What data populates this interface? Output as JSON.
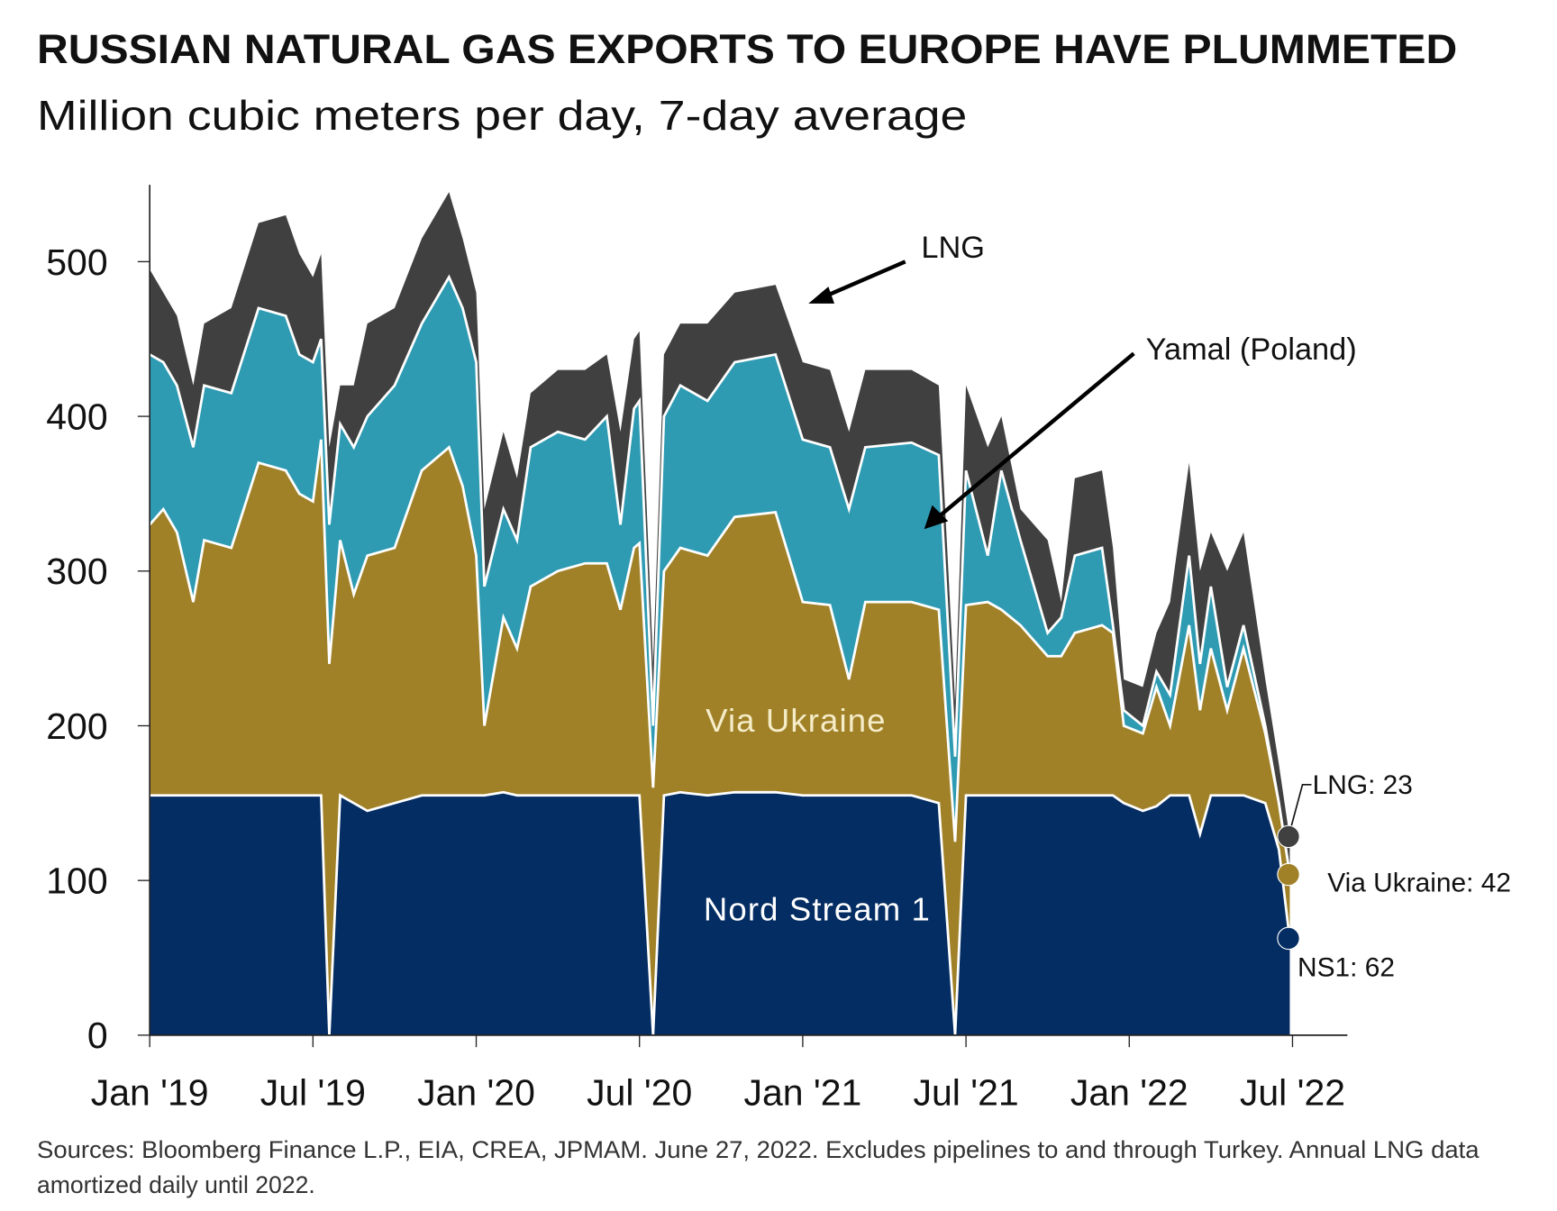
{
  "chart_data": {
    "type": "area",
    "stacked": true,
    "title": "RUSSIAN NATURAL GAS EXPORTS TO EUROPE HAVE PLUMMETED",
    "subtitle": "Million cubic meters per day, 7-day average",
    "xlabel": "",
    "ylabel": "",
    "x_unit": "months since Jan 2019",
    "x_ticks": [
      {
        "x": 0,
        "label": "Jan '19"
      },
      {
        "x": 6,
        "label": "Jul '19"
      },
      {
        "x": 12,
        "label": "Jan '20"
      },
      {
        "x": 18,
        "label": "Jul '20"
      },
      {
        "x": 24,
        "label": "Jan '21"
      },
      {
        "x": 30,
        "label": "Jul '21"
      },
      {
        "x": 36,
        "label": "Jan '22"
      },
      {
        "x": 42,
        "label": "Jul '22"
      }
    ],
    "y_ticks": [
      0,
      100,
      200,
      300,
      400,
      500
    ],
    "ylim": [
      0,
      550
    ],
    "xlim": [
      0,
      44
    ],
    "grid": false,
    "x": [
      0,
      0.5,
      1,
      1.6,
      2,
      3,
      4,
      5,
      5.5,
      6,
      6.3,
      6.6,
      7,
      7.5,
      8,
      9,
      10,
      11,
      11.5,
      12,
      12.3,
      13,
      13.5,
      14,
      15,
      16,
      16.8,
      17.3,
      17.8,
      18,
      18.5,
      18.9,
      19.5,
      20.5,
      21.5,
      23,
      24,
      25,
      25.7,
      26.3,
      28,
      29,
      29.6,
      30,
      30.8,
      31.3,
      32,
      33,
      33.5,
      34,
      35,
      35.4,
      35.8,
      36.5,
      37,
      37.5,
      38.2,
      38.6,
      39,
      39.6,
      40.2,
      41,
      41.5,
      41.9
    ],
    "series": [
      {
        "name": "Nord Stream 1",
        "color": "#042d63",
        "values": [
          155,
          155,
          155,
          155,
          155,
          155,
          155,
          155,
          155,
          155,
          155,
          0,
          155,
          150,
          145,
          150,
          155,
          155,
          155,
          155,
          155,
          157,
          155,
          155,
          155,
          155,
          155,
          155,
          155,
          155,
          0,
          155,
          157,
          155,
          157,
          157,
          155,
          155,
          155,
          155,
          155,
          150,
          0,
          155,
          155,
          155,
          155,
          155,
          155,
          155,
          155,
          155,
          150,
          145,
          148,
          155,
          155,
          130,
          155,
          155,
          155,
          150,
          120,
          62
        ]
      },
      {
        "name": "Via Ukraine",
        "color": "#a08128",
        "values": [
          175,
          185,
          170,
          125,
          165,
          160,
          215,
          210,
          195,
          190,
          230,
          240,
          165,
          135,
          165,
          165,
          210,
          225,
          200,
          155,
          45,
          113,
          95,
          135,
          145,
          150,
          150,
          120,
          160,
          163,
          160,
          145,
          158,
          155,
          178,
          181,
          125,
          123,
          75,
          125,
          125,
          125,
          125,
          123,
          125,
          120,
          110,
          90,
          90,
          105,
          110,
          105,
          50,
          50,
          77,
          45,
          110,
          80,
          95,
          55,
          95,
          45,
          30,
          42
        ]
      },
      {
        "name": "Yamal (Poland)",
        "color": "#2e9bb3",
        "values": [
          110,
          95,
          95,
          100,
          100,
          100,
          100,
          100,
          90,
          90,
          65,
          90,
          75,
          95,
          90,
          105,
          95,
          110,
          115,
          125,
          90,
          70,
          70,
          90,
          90,
          80,
          95,
          55,
          90,
          92,
          40,
          100,
          105,
          100,
          100,
          102,
          105,
          102,
          110,
          100,
          103,
          100,
          55,
          87,
          30,
          90,
          55,
          15,
          25,
          50,
          50,
          5,
          10,
          5,
          10,
          20,
          45,
          30,
          40,
          15,
          15,
          5,
          0,
          0
        ]
      },
      {
        "name": "LNG",
        "color": "#404040",
        "values": [
          55,
          45,
          45,
          40,
          40,
          55,
          55,
          65,
          65,
          55,
          55,
          50,
          25,
          40,
          60,
          50,
          55,
          55,
          45,
          45,
          50,
          50,
          40,
          35,
          40,
          45,
          40,
          60,
          45,
          45,
          40,
          40,
          40,
          50,
          45,
          45,
          50,
          50,
          50,
          50,
          47,
          45,
          35,
          55,
          70,
          35,
          20,
          60,
          10,
          50,
          50,
          50,
          20,
          25,
          25,
          60,
          60,
          60,
          35,
          75,
          60,
          30,
          25,
          23
        ]
      }
    ],
    "annotations": {
      "lng_label": "LNG",
      "yamal_label": "Yamal (Poland)",
      "ukraine_label": "Via Ukraine",
      "ns1_label": "Nord Stream 1",
      "end_lng": "LNG: 23",
      "end_ukraine": "Via Ukraine: 42",
      "end_ns1": "NS1: 62"
    },
    "source_line1": "Sources: Bloomberg Finance L.P., EIA, CREA, JPMAM. June 27, 2022. Excludes pipelines to and through Turkey. Annual LNG data",
    "source_line2": "amortized daily until 2022."
  }
}
